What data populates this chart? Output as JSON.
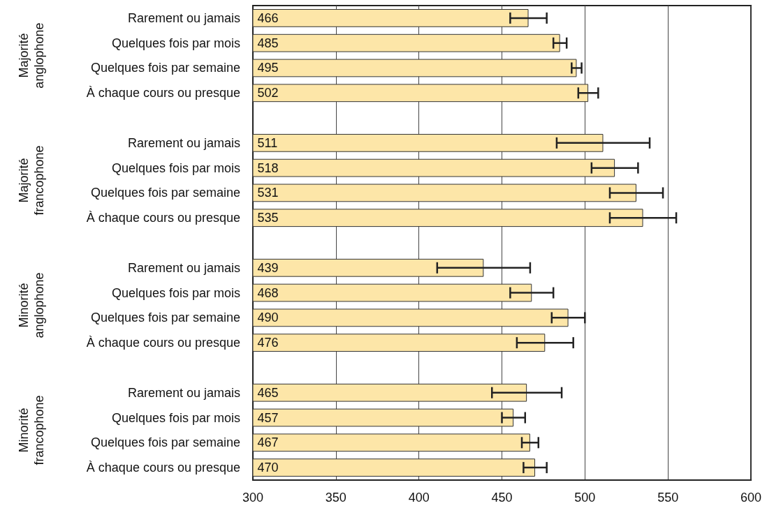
{
  "chart_data": {
    "type": "bar",
    "orientation": "horizontal",
    "categories": [
      "Rarement ou jamais",
      "Quelques fois par mois",
      "Quelques fois par semaine",
      "À chaque cours ou presque",
      null,
      "Rarement ou jamais",
      "Quelques fois par mois",
      "Quelques fois par semaine",
      "À chaque cours ou presque",
      null,
      "Rarement ou jamais",
      "Quelques fois par mois",
      "Quelques fois par semaine",
      "À chaque cours ou presque",
      null,
      "Rarement ou jamais",
      "Quelques fois par mois",
      "Quelques fois par semaine",
      "À chaque cours ou presque"
    ],
    "values": [
      466,
      485,
      495,
      502,
      null,
      511,
      518,
      531,
      535,
      null,
      439,
      468,
      490,
      476,
      null,
      465,
      457,
      467,
      470
    ],
    "errors": [
      11,
      4,
      3,
      6,
      null,
      28,
      14,
      16,
      20,
      null,
      28,
      13,
      10,
      17,
      null,
      21,
      7,
      5,
      7
    ],
    "color": "#fde6a8",
    "data_labels": true,
    "xlim": [
      300,
      600
    ],
    "xticks": [
      300,
      350,
      400,
      450,
      500,
      550,
      600
    ],
    "grid": "x",
    "annotations": [
      "Majorité anglophone",
      "Majorité francophone",
      "Minorité anglophone",
      "Minorité francophone"
    ]
  }
}
